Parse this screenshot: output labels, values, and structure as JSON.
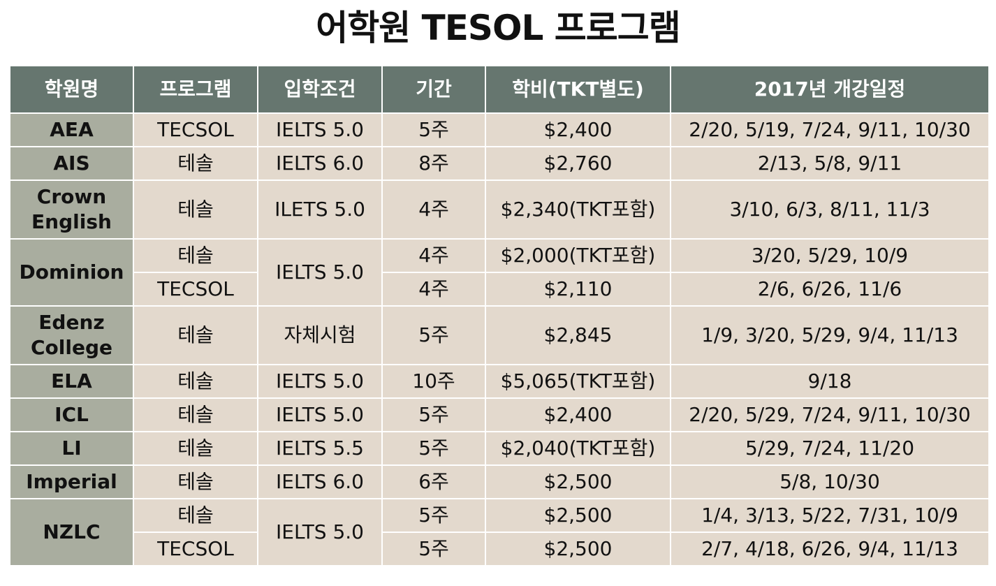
{
  "title": "어학원 TESOL 프로그램",
  "headers": [
    "학원명",
    "프로그램",
    "입학조건",
    "기간",
    "학비(TKT별도)",
    "2017년 개강일정"
  ],
  "schools": [
    {
      "name": "AEA",
      "programs": [
        {
          "program": "TECSOL",
          "requirement": "IELTS 5.0",
          "duration": "5주",
          "fee": "$2,400",
          "schedule": "2/20, 5/19, 7/24, 9/11, 10/30"
        }
      ]
    },
    {
      "name": "AIS",
      "programs": [
        {
          "program": "테솔",
          "requirement": "IELTS 6.0",
          "duration": "8주",
          "fee": "$2,760",
          "schedule": "2/13, 5/8, 9/11"
        }
      ]
    },
    {
      "name": "Crown English",
      "programs": [
        {
          "program": "테솔",
          "requirement": "ILETS 5.0",
          "duration": "4주",
          "fee": "$2,340(TKT포함)",
          "schedule": "3/10, 6/3, 8/11, 11/3"
        }
      ]
    },
    {
      "name": "Dominion",
      "requirement": "IELTS 5.0",
      "programs": [
        {
          "program": "테솔",
          "duration": "4주",
          "fee": "$2,000(TKT포함)",
          "schedule": "3/20, 5/29, 10/9"
        },
        {
          "program": "TECSOL",
          "duration": "4주",
          "fee": "$2,110",
          "schedule": "2/6, 6/26, 11/6"
        }
      ]
    },
    {
      "name": "Edenz College",
      "programs": [
        {
          "program": "테솔",
          "requirement": "자체시험",
          "duration": "5주",
          "fee": "$2,845",
          "schedule": "1/9, 3/20, 5/29, 9/4, 11/13"
        }
      ]
    },
    {
      "name": "ELA",
      "programs": [
        {
          "program": "테솔",
          "requirement": "IELTS 5.0",
          "duration": "10주",
          "fee": "$5,065(TKT포함)",
          "schedule": "9/18"
        }
      ]
    },
    {
      "name": "ICL",
      "programs": [
        {
          "program": "테솔",
          "requirement": "IELTS 5.0",
          "duration": "5주",
          "fee": "$2,400",
          "schedule": "2/20, 5/29, 7/24, 9/11, 10/30"
        }
      ]
    },
    {
      "name": "LI",
      "programs": [
        {
          "program": "테솔",
          "requirement": "IELTS 5.5",
          "duration": "5주",
          "fee": "$2,040(TKT포함)",
          "schedule": "5/29, 7/24, 11/20"
        }
      ]
    },
    {
      "name": "Imperial",
      "programs": [
        {
          "program": "테솔",
          "requirement": "IELTS 6.0",
          "duration": "6주",
          "fee": "$2,500",
          "schedule": "5/8, 10/30"
        }
      ]
    },
    {
      "name": "NZLC",
      "requirement": "IELTS 5.0",
      "programs": [
        {
          "program": "테솔",
          "duration": "5주",
          "fee": "$2,500",
          "schedule": "1/4, 3/13, 5/22, 7/31, 10/9"
        },
        {
          "program": "TECSOL",
          "duration": "5주",
          "fee": "$2,500",
          "schedule": "2/7, 4/18, 6/26, 9/4, 11/13"
        }
      ]
    }
  ],
  "colors": {
    "header_bg": "#66766f",
    "name_bg": "#a9ad9f",
    "cell_bg": "#e3d9cd"
  }
}
